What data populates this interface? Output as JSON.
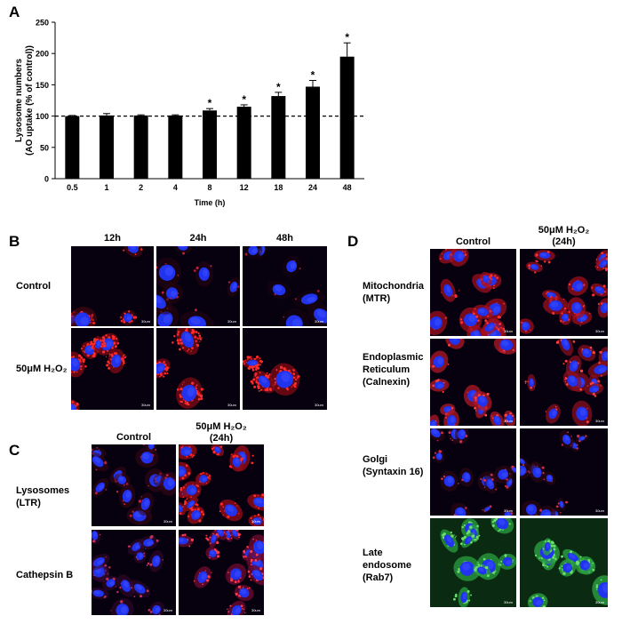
{
  "panels": {
    "A": "A",
    "B": "B",
    "C": "C",
    "D": "D"
  },
  "chart_data": {
    "type": "bar",
    "ylabel_line1": "Lysosome numbers",
    "ylabel_line2": "(AO uptake (% of control))",
    "xlabel": "Time (h)",
    "categories": [
      "0.5",
      "1",
      "2",
      "4",
      "8",
      "12",
      "18",
      "24",
      "48"
    ],
    "values": [
      100,
      101,
      101,
      101,
      109,
      115,
      132,
      147,
      195
    ],
    "errors": [
      1,
      3,
      1,
      1,
      3,
      3,
      6,
      10,
      22
    ],
    "significant": [
      false,
      false,
      false,
      false,
      true,
      true,
      true,
      true,
      true
    ],
    "significance_marker": "*",
    "ylim": [
      0,
      250
    ],
    "yticks": [
      "0",
      "50",
      "100",
      "150",
      "200",
      "250"
    ],
    "reference_line": 100,
    "bar_color": "#000000"
  },
  "panelB": {
    "columns": [
      "12h",
      "24h",
      "48h"
    ],
    "rows": [
      "Control",
      "50μM H₂O₂"
    ]
  },
  "panelC": {
    "columns": [
      "Control",
      "50μM H₂O₂\n(24h)"
    ],
    "rows": [
      "Lysosomes\n(LTR)",
      "Cathepsin B"
    ]
  },
  "panelD": {
    "columns": [
      "Control",
      "50μM H₂O₂\n(24h)"
    ],
    "rows": [
      "Mitochondria\n(MTR)",
      "Endoplasmic\nReticulum\n(Calnexin)",
      "Golgi\n(Syntaxin 16)",
      "Late\nendosome\n(Rab7)"
    ]
  },
  "scale_bar_label": "30um"
}
